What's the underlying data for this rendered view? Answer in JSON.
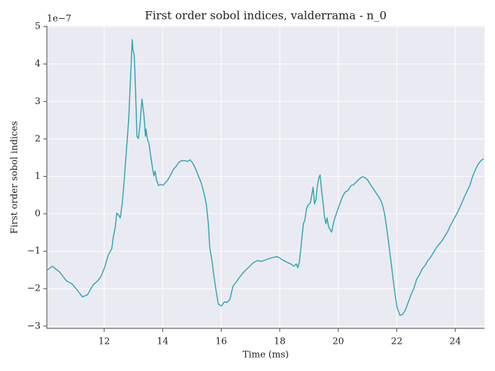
{
  "chart_data": {
    "type": "line",
    "title": "First order sobol indices, valderrama - n_0",
    "x_label": "Time (ms)",
    "y_label": "First order sobol indices",
    "y_offset_label": "1e−7",
    "x": [
      10.04,
      10.23,
      10.47,
      10.71,
      10.9,
      11.07,
      11.26,
      11.43,
      11.62,
      11.78,
      11.9,
      12.02,
      12.14,
      12.26,
      12.31,
      12.38,
      12.43,
      12.5,
      12.55,
      12.62,
      12.69,
      12.76,
      12.84,
      12.88,
      12.96,
      12.98,
      13.03,
      13.08,
      13.12,
      13.17,
      13.22,
      13.29,
      13.36,
      13.41,
      13.43,
      13.48,
      13.53,
      13.58,
      13.65,
      13.7,
      13.74,
      13.79,
      13.86,
      13.94,
      14.01,
      14.08,
      14.17,
      14.27,
      14.37,
      14.46,
      14.56,
      14.65,
      14.75,
      14.84,
      14.94,
      15.04,
      15.13,
      15.23,
      15.32,
      15.42,
      15.49,
      15.56,
      15.61,
      15.68,
      15.75,
      15.82,
      15.9,
      16.01,
      16.11,
      16.2,
      16.3,
      16.4,
      16.52,
      16.66,
      16.8,
      16.95,
      17.09,
      17.23,
      17.38,
      17.52,
      17.66,
      17.81,
      17.9,
      18.0,
      18.09,
      18.24,
      18.38,
      18.48,
      18.57,
      18.62,
      18.67,
      18.71,
      18.76,
      18.81,
      18.86,
      18.91,
      18.95,
      19.05,
      19.1,
      19.14,
      19.19,
      19.24,
      19.29,
      19.34,
      19.38,
      19.43,
      19.48,
      19.53,
      19.58,
      19.62,
      19.67,
      19.77,
      19.86,
      19.96,
      20.05,
      20.15,
      20.24,
      20.34,
      20.43,
      20.53,
      20.63,
      20.72,
      20.82,
      20.91,
      21.01,
      21.1,
      21.2,
      21.29,
      21.39,
      21.49,
      21.58,
      21.65,
      21.73,
      21.82,
      21.92,
      22.01,
      22.11,
      22.2,
      22.3,
      22.39,
      22.49,
      22.59,
      22.68,
      22.78,
      22.87,
      22.97,
      23.06,
      23.16,
      23.25,
      23.35,
      23.44,
      23.54,
      23.64,
      23.73,
      23.83,
      23.92,
      24.02,
      24.11,
      24.21,
      24.31,
      24.4,
      24.5,
      24.59,
      24.69,
      24.78,
      24.88,
      24.97
    ],
    "series": [
      {
        "color": "#2ea6ae",
        "values": [
          -1.51,
          -1.4,
          -1.55,
          -1.79,
          -1.87,
          -2.03,
          -2.22,
          -2.16,
          -1.9,
          -1.79,
          -1.66,
          -1.42,
          -1.1,
          -0.93,
          -0.63,
          -0.35,
          0.02,
          -0.04,
          -0.11,
          0.3,
          0.95,
          1.7,
          2.54,
          3.28,
          4.65,
          4.4,
          4.22,
          3.1,
          2.07,
          2.01,
          2.35,
          3.06,
          2.63,
          2.07,
          2.26,
          1.98,
          1.88,
          1.6,
          1.23,
          1.01,
          1.14,
          0.9,
          0.76,
          0.78,
          0.76,
          0.82,
          0.9,
          1.04,
          1.19,
          1.27,
          1.38,
          1.42,
          1.42,
          1.4,
          1.44,
          1.34,
          1.19,
          0.99,
          0.82,
          0.52,
          0.26,
          -0.26,
          -0.91,
          -1.23,
          -1.66,
          -2.03,
          -2.41,
          -2.46,
          -2.35,
          -2.37,
          -2.28,
          -1.94,
          -1.81,
          -1.66,
          -1.53,
          -1.42,
          -1.31,
          -1.25,
          -1.27,
          -1.23,
          -1.19,
          -1.16,
          -1.14,
          -1.18,
          -1.23,
          -1.29,
          -1.34,
          -1.4,
          -1.34,
          -1.44,
          -1.29,
          -1.01,
          -0.63,
          -0.26,
          -0.17,
          0.11,
          0.21,
          0.3,
          0.52,
          0.71,
          0.26,
          0.39,
          0.76,
          0.97,
          1.04,
          0.63,
          0.3,
          -0.07,
          -0.26,
          -0.11,
          -0.35,
          -0.49,
          -0.17,
          0.06,
          0.26,
          0.47,
          0.58,
          0.63,
          0.75,
          0.78,
          0.86,
          0.93,
          0.99,
          0.97,
          0.9,
          0.78,
          0.67,
          0.56,
          0.45,
          0.3,
          0.02,
          -0.35,
          -0.82,
          -1.38,
          -2.03,
          -2.5,
          -2.71,
          -2.69,
          -2.56,
          -2.37,
          -2.16,
          -1.98,
          -1.75,
          -1.62,
          -1.47,
          -1.38,
          -1.25,
          -1.16,
          -1.04,
          -0.91,
          -0.82,
          -0.73,
          -0.6,
          -0.49,
          -0.32,
          -0.19,
          -0.04,
          0.09,
          0.26,
          0.45,
          0.6,
          0.76,
          0.99,
          1.18,
          1.32,
          1.42,
          1.47
        ]
      }
    ],
    "xlim": [
      10.04,
      25.0
    ],
    "ylim": [
      -3.06,
      5.02
    ],
    "xticks": [
      12,
      14,
      16,
      18,
      20,
      22,
      24
    ],
    "yticks": [
      {
        "value": -3,
        "label": "−3"
      },
      {
        "value": -2,
        "label": "−2"
      },
      {
        "value": -1,
        "label": "−1"
      },
      0,
      1,
      2,
      3,
      4,
      5
    ],
    "grid": true
  }
}
